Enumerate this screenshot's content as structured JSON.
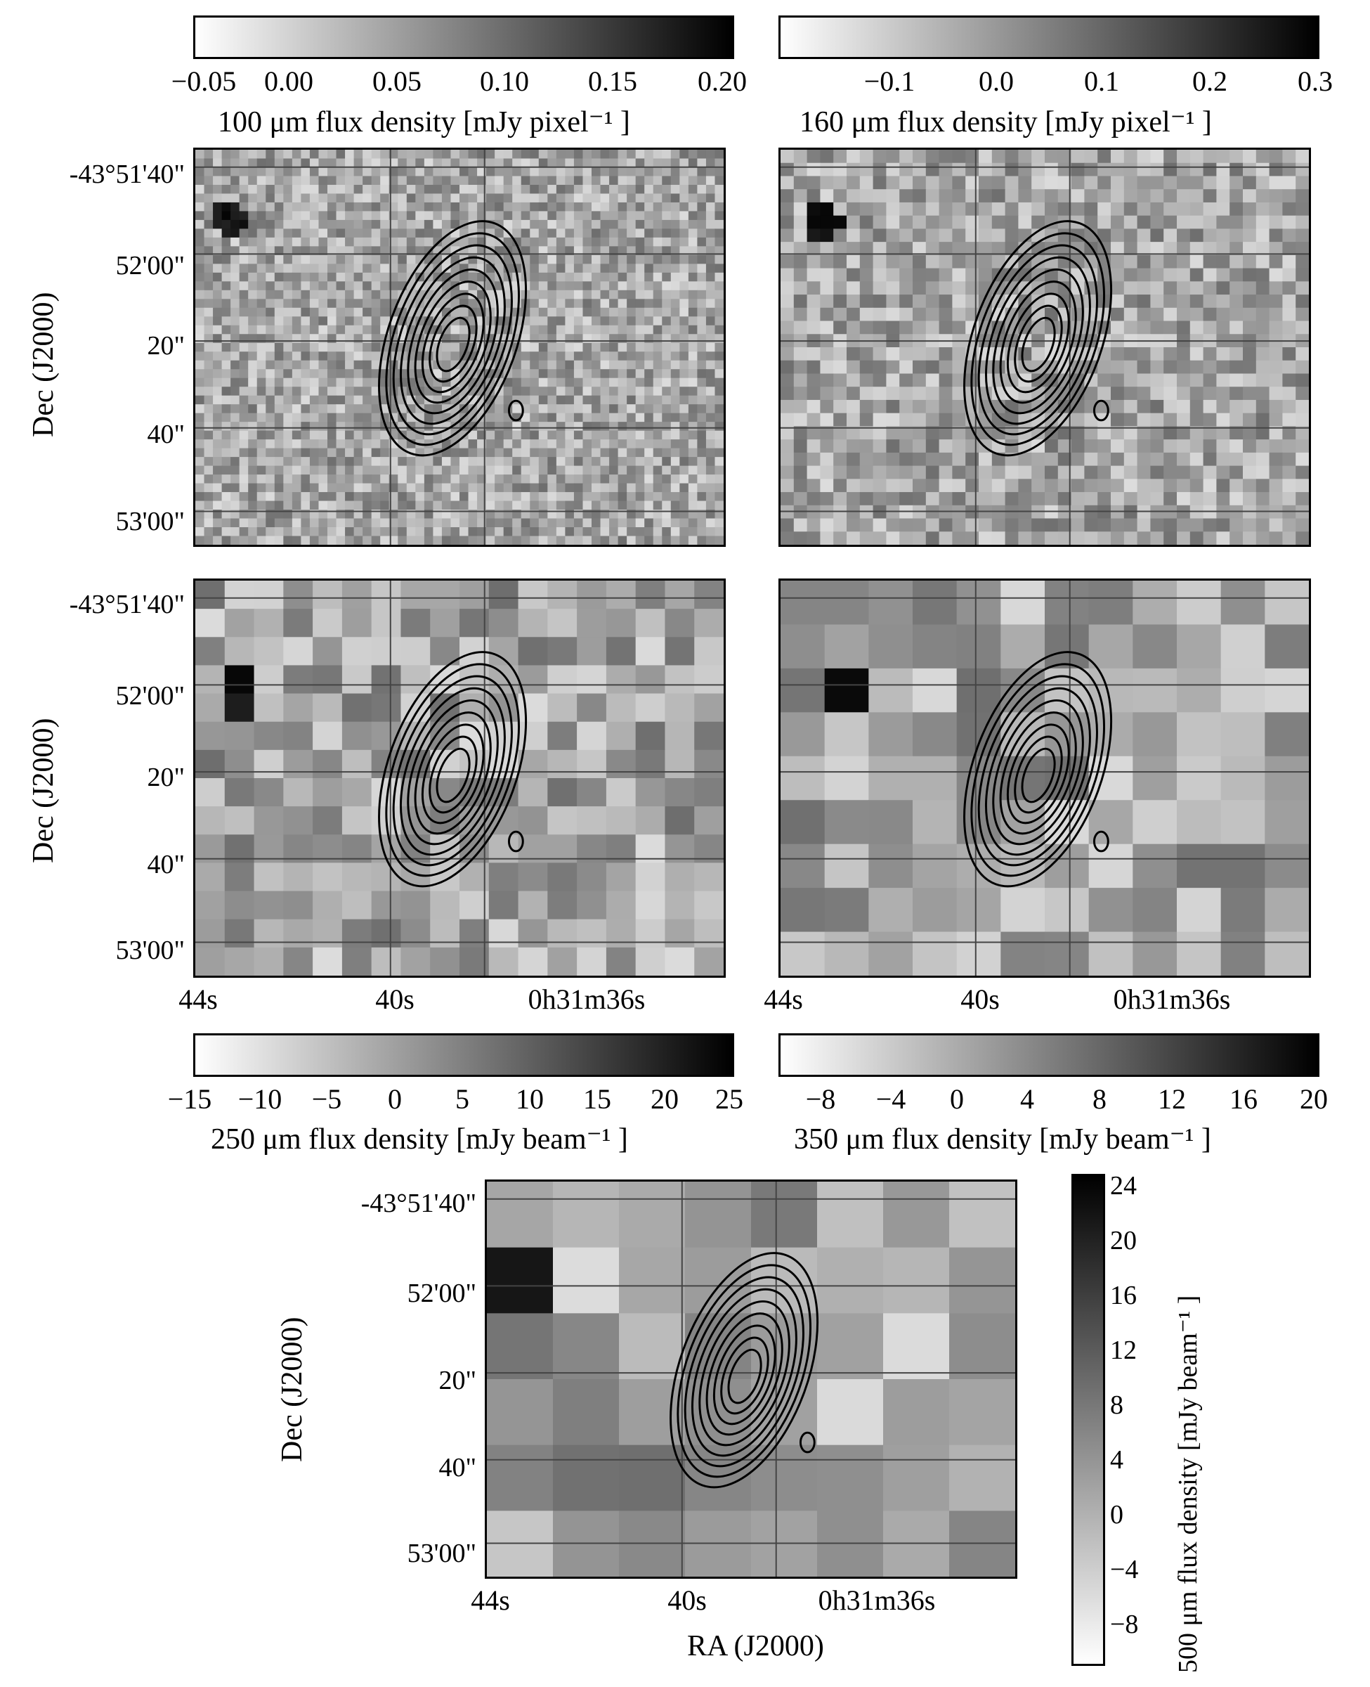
{
  "figure": {
    "colorbars": {
      "c100": {
        "label": "100 μm flux density [mJy pixel⁻¹ ]",
        "ticks": [
          "−0.05",
          "0.00",
          "0.05",
          "0.10",
          "0.15",
          "0.20"
        ]
      },
      "c160": {
        "label": "160 μm flux density [mJy pixel⁻¹ ]",
        "ticks": [
          "−0.1",
          "0.0",
          "0.1",
          "0.2",
          "0.3"
        ]
      },
      "c250": {
        "label": "250 μm flux density [mJy beam⁻¹ ]",
        "ticks": [
          "−15",
          "−10",
          "−5",
          "0",
          "5",
          "10",
          "15",
          "20",
          "25"
        ]
      },
      "c350": {
        "label": "350 μm flux density [mJy beam⁻¹ ]",
        "ticks": [
          "−8",
          "−4",
          "0",
          "4",
          "8",
          "12",
          "16",
          "20"
        ]
      },
      "c500": {
        "label": "500 μm flux density [mJy beam⁻¹ ]",
        "ticks": [
          "24",
          "20",
          "16",
          "12",
          "8",
          "4",
          "0",
          "−4",
          "−8"
        ]
      }
    },
    "dec_axis": {
      "label": "Dec (J2000)",
      "ticks": [
        "-43°51'40\"",
        "52'00\"",
        "20\"",
        "40\"",
        "53'00\""
      ]
    },
    "ra_axis": {
      "label": "RA (J2000)",
      "ticks": [
        "44s",
        "40s",
        "0h31m36s"
      ]
    },
    "colors": {
      "background": "#ffffff",
      "ink": "#000000"
    }
  }
}
